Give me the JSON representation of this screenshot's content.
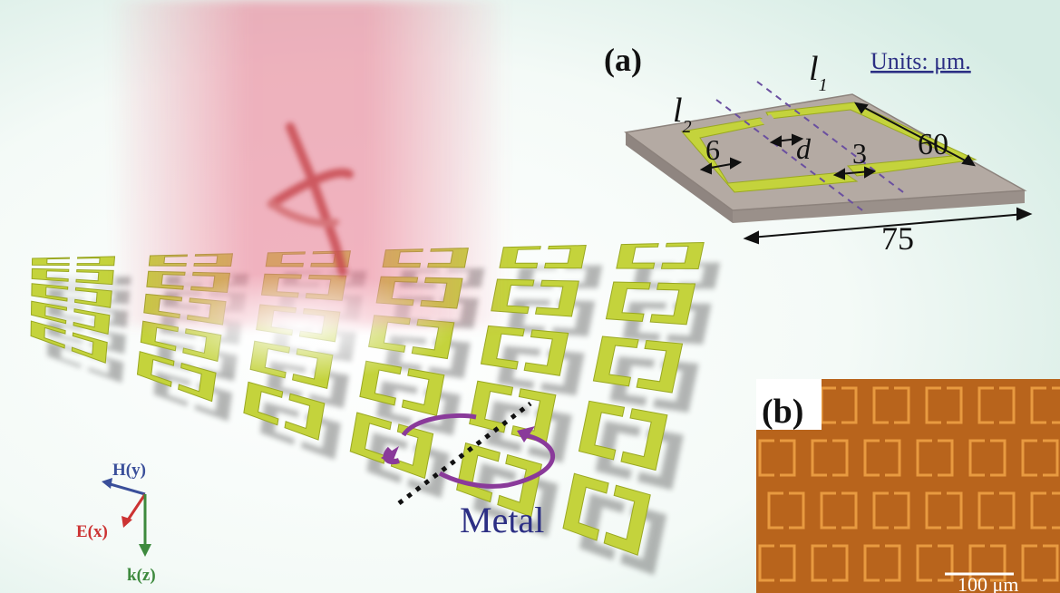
{
  "panel_a": {
    "label": "(a)",
    "units": "Units: μm.",
    "l2": "l",
    "l2_sub": "2",
    "l1": "l",
    "l1_sub": "1",
    "gap_d": "d",
    "dim_60": "60",
    "dim_6": "6",
    "dim_3": "3",
    "dim_75": "75"
  },
  "panel_b": {
    "label": "(b)",
    "scale_bar": "100 μm"
  },
  "axes": {
    "h": "H(y)",
    "e": "E(x)",
    "k": "k(z)"
  },
  "material_label": "Metal",
  "colors": {
    "metal": "#c4d33c",
    "metal_edge": "#9aa822",
    "substrate": "#b4aaa3",
    "beam": "#e8758c",
    "h_field": "#3a4f9a",
    "e_field": "#cc3333",
    "k_field": "#3e8a3e",
    "text_blue": "#2c2f84",
    "micro_bg": "#b8641c",
    "micro_ring": "#e89a40"
  }
}
